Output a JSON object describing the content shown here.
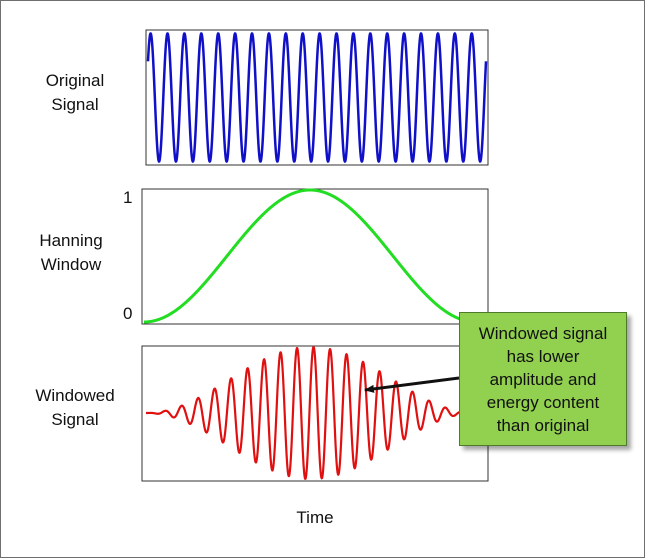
{
  "labels": {
    "original": [
      "Original",
      "Signal"
    ],
    "hanning": [
      "Hanning",
      "Window"
    ],
    "windowed": [
      "Windowed",
      "Signal"
    ],
    "time": "Time",
    "ytick_top": "1",
    "ytick_bottom": "0"
  },
  "callout": {
    "text": "Windowed signal has lower amplitude and energy content than original"
  },
  "colors": {
    "original": "#1010c8",
    "window": "#22dd22",
    "windowed": "#e01010",
    "callout_bg": "#92d050",
    "arrow": "#111111"
  },
  "chart_data": [
    {
      "type": "line",
      "title": "Original Signal",
      "series": [
        {
          "name": "Original Signal",
          "function": "sine",
          "cycles": 20,
          "amplitude": 1
        }
      ],
      "ylim": [
        -1,
        1
      ]
    },
    {
      "type": "line",
      "title": "Hanning Window",
      "series": [
        {
          "name": "Hanning Window",
          "function": "hanning"
        }
      ],
      "ylim": [
        0,
        1
      ],
      "yticks": [
        "0",
        "1"
      ]
    },
    {
      "type": "line",
      "title": "Windowed Signal",
      "series": [
        {
          "name": "Windowed Signal",
          "function": "sine*hanning",
          "cycles": 20
        }
      ],
      "ylim": [
        -1,
        1
      ]
    }
  ]
}
